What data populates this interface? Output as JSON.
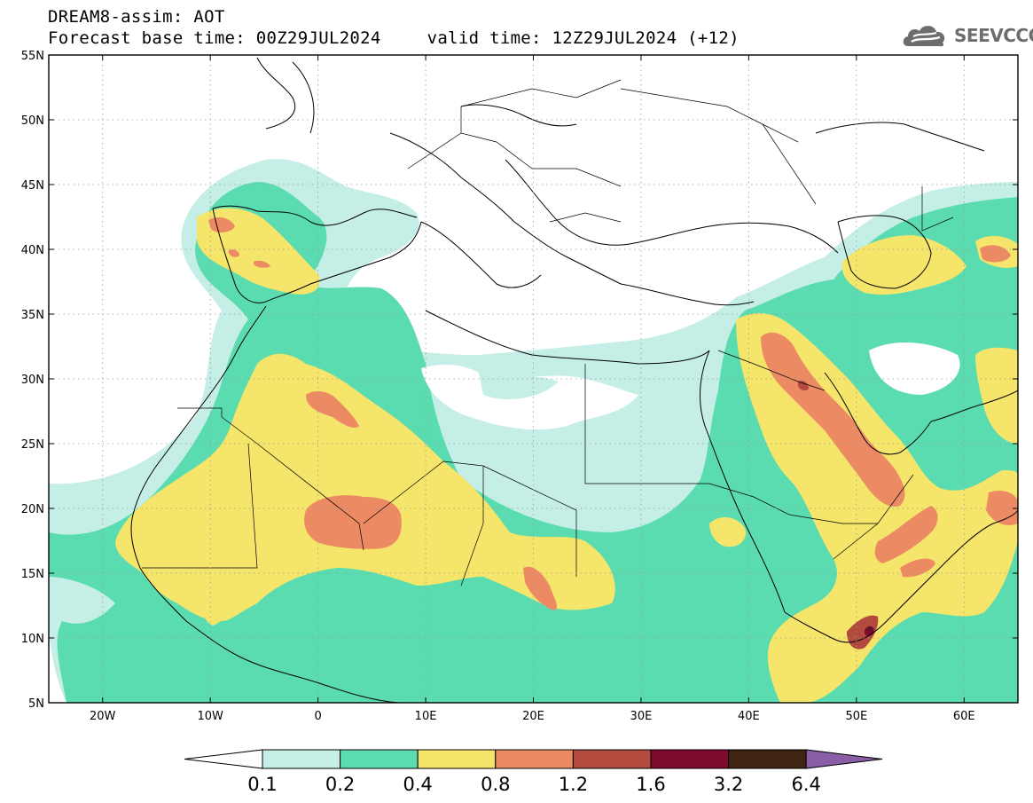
{
  "title": {
    "line1": "DREAM8-assim: AOT",
    "base_time": "Forecast base time: 00Z29JUL2024",
    "valid_time": "valid time: 12Z29JUL2024 (+12)"
  },
  "logo": {
    "text": "SEEVCCC",
    "icon": "cloud-icon",
    "color": "#6d6d6d"
  },
  "map": {
    "extent": {
      "lon_min": -25,
      "lon_max": 65,
      "lat_min": 5,
      "lat_max": 55
    },
    "lat_ticks": [
      {
        "value": 55,
        "label": "55N"
      },
      {
        "value": 50,
        "label": "50N"
      },
      {
        "value": 45,
        "label": "45N"
      },
      {
        "value": 40,
        "label": "40N"
      },
      {
        "value": 35,
        "label": "35N"
      },
      {
        "value": 30,
        "label": "30N"
      },
      {
        "value": 25,
        "label": "25N"
      },
      {
        "value": 20,
        "label": "20N"
      },
      {
        "value": 15,
        "label": "15N"
      },
      {
        "value": 10,
        "label": "10N"
      },
      {
        "value": 5,
        "label": "5N"
      }
    ],
    "lon_ticks": [
      {
        "value": -20,
        "label": "20W"
      },
      {
        "value": -10,
        "label": "10W"
      },
      {
        "value": 0,
        "label": "0"
      },
      {
        "value": 10,
        "label": "10E"
      },
      {
        "value": 20,
        "label": "20E"
      },
      {
        "value": 30,
        "label": "30E"
      },
      {
        "value": 40,
        "label": "40E"
      },
      {
        "value": 50,
        "label": "50E"
      },
      {
        "value": 60,
        "label": "60E"
      }
    ],
    "grid": "dotted"
  },
  "colorbar": {
    "labels": [
      "0.1",
      "0.2",
      "0.4",
      "0.8",
      "1.2",
      "1.6",
      "3.2",
      "6.4"
    ],
    "colors": [
      "#ffffff",
      "#c4eee6",
      "#5bdcb0",
      "#f5e56a",
      "#ec8a64",
      "#b24a3e",
      "#7e0a2e",
      "#3f2313",
      "#8a5ea6"
    ]
  }
}
